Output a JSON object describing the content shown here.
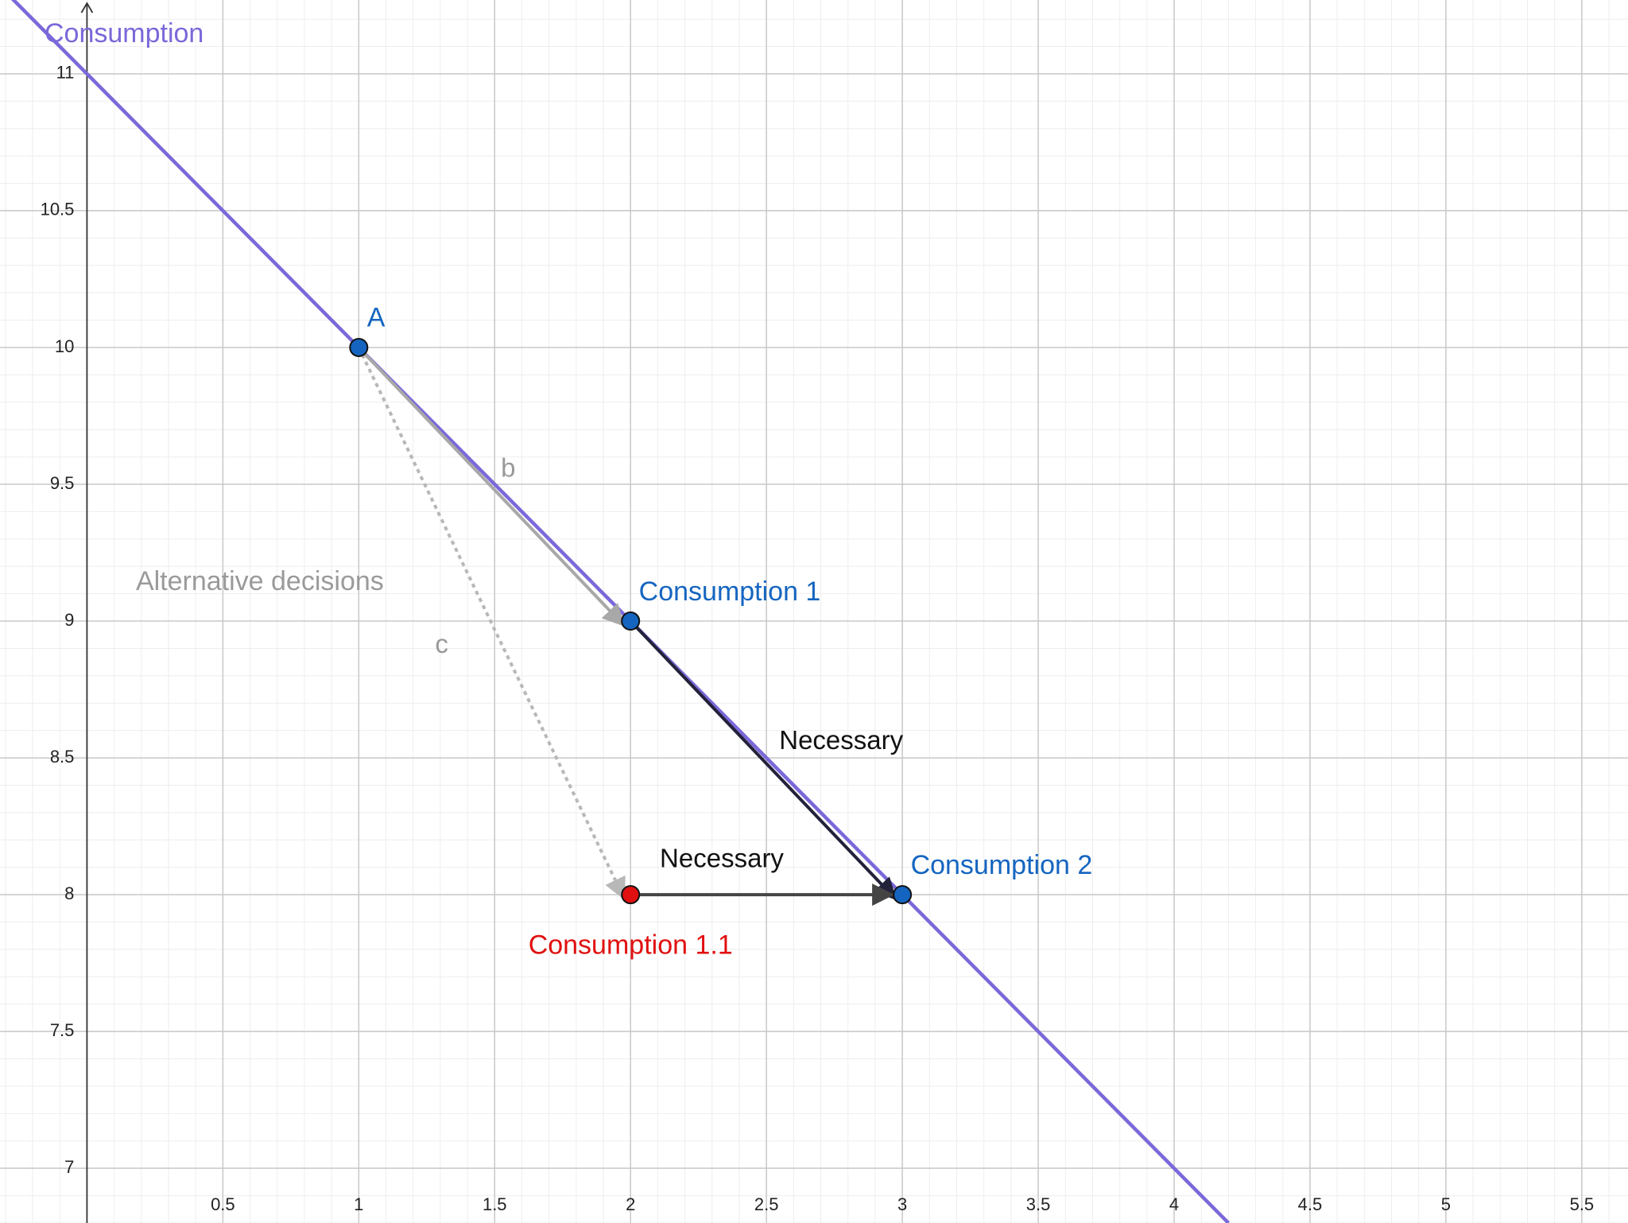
{
  "chart_data": {
    "type": "scatter",
    "xlim": [
      -0.32,
      5.67
    ],
    "ylim": [
      6.8,
      11.27
    ],
    "xticks": [
      0.5,
      1,
      1.5,
      2,
      2.5,
      3,
      3.5,
      4,
      4.5,
      5,
      5.5
    ],
    "yticks": [
      7,
      7.5,
      8,
      8.5,
      9,
      9.5,
      10,
      10.5,
      11
    ],
    "grid": true,
    "minor_grid": true,
    "line": {
      "name": "Consumption",
      "color": "#7b68d9",
      "x": [
        -0.32,
        4.2
      ],
      "y": [
        11.32,
        6.8
      ]
    },
    "points": [
      {
        "name": "A",
        "x": 1,
        "y": 10,
        "color": "#1565c0"
      },
      {
        "name": "Consumption 1",
        "x": 2,
        "y": 9,
        "color": "#1565c0"
      },
      {
        "name": "Consumption 1.1",
        "x": 2,
        "y": 8,
        "color": "#e01010"
      },
      {
        "name": "Consumption 2",
        "x": 3,
        "y": 8,
        "color": "#1565c0"
      }
    ],
    "vectors": [
      {
        "label": "b",
        "x": [
          1,
          2
        ],
        "y": [
          10,
          9
        ],
        "color": "#a8a8a8",
        "dashed": false
      },
      {
        "label": "c",
        "x": [
          1,
          2
        ],
        "y": [
          10,
          8
        ],
        "color": "#b8b8b8",
        "dashed": true
      },
      {
        "label": "Necessary",
        "x": [
          2,
          3
        ],
        "y": [
          9,
          8
        ],
        "color": "#22223a",
        "dashed": false
      },
      {
        "label": "Necessary",
        "x": [
          2,
          3
        ],
        "y": [
          8,
          8
        ],
        "color": "#444444",
        "dashed": false
      }
    ],
    "annotations": [
      {
        "text": "Alternative decisions",
        "x": 0.18,
        "y": 9.14,
        "color": "#9a9a9a"
      }
    ]
  }
}
